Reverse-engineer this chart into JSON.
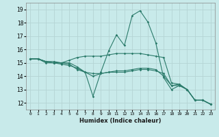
{
  "xlabel": "Humidex (Indice chaleur)",
  "ylabel": "",
  "xlim": [
    -0.5,
    23.5
  ],
  "ylim": [
    11.5,
    19.5
  ],
  "yticks": [
    12,
    13,
    14,
    15,
    16,
    17,
    18,
    19
  ],
  "xticks": [
    0,
    1,
    2,
    3,
    4,
    5,
    6,
    7,
    8,
    9,
    10,
    11,
    12,
    13,
    14,
    15,
    16,
    17,
    18,
    19,
    20,
    21,
    22,
    23
  ],
  "bg_color": "#c8eaea",
  "grid_color": "#b4d4d4",
  "line_color": "#2a7a6a",
  "lines": [
    {
      "x": [
        0,
        1,
        2,
        3,
        4,
        5,
        6,
        7,
        8,
        9,
        10,
        11,
        12,
        13,
        14,
        15,
        16,
        17,
        18,
        19,
        20,
        21,
        22,
        23
      ],
      "y": [
        15.3,
        15.3,
        15.1,
        15.0,
        15.0,
        15.0,
        14.7,
        14.3,
        12.5,
        14.3,
        15.9,
        17.1,
        16.3,
        18.55,
        18.9,
        18.05,
        16.5,
        13.9,
        13.0,
        13.3,
        13.0,
        12.2,
        12.2,
        11.9
      ]
    },
    {
      "x": [
        0,
        1,
        2,
        3,
        4,
        5,
        6,
        7,
        8,
        9,
        10,
        11,
        12,
        13,
        14,
        15,
        16,
        17,
        18,
        19,
        20,
        21,
        22,
        23
      ],
      "y": [
        15.3,
        15.3,
        15.0,
        15.0,
        14.9,
        14.8,
        14.6,
        14.3,
        14.2,
        14.2,
        14.3,
        14.3,
        14.3,
        14.4,
        14.5,
        14.5,
        14.4,
        14.2,
        13.3,
        13.4,
        13.0,
        12.2,
        12.2,
        11.9
      ]
    },
    {
      "x": [
        0,
        1,
        2,
        3,
        4,
        5,
        6,
        7,
        8,
        9,
        10,
        11,
        12,
        13,
        14,
        15,
        16,
        17,
        18,
        19,
        20,
        21,
        22,
        23
      ],
      "y": [
        15.3,
        15.3,
        15.1,
        15.1,
        15.0,
        15.2,
        15.4,
        15.5,
        15.5,
        15.5,
        15.6,
        15.7,
        15.7,
        15.7,
        15.7,
        15.6,
        15.5,
        15.4,
        13.5,
        13.4,
        13.0,
        12.2,
        12.2,
        11.9
      ]
    },
    {
      "x": [
        0,
        1,
        2,
        3,
        4,
        5,
        6,
        7,
        8,
        9,
        10,
        11,
        12,
        13,
        14,
        15,
        16,
        17,
        18,
        19,
        20,
        21,
        22,
        23
      ],
      "y": [
        15.3,
        15.3,
        15.1,
        15.0,
        15.0,
        14.9,
        14.5,
        14.3,
        14.0,
        14.2,
        14.3,
        14.4,
        14.4,
        14.5,
        14.6,
        14.6,
        14.5,
        14.0,
        13.3,
        13.3,
        13.0,
        12.2,
        12.2,
        11.9
      ]
    }
  ]
}
